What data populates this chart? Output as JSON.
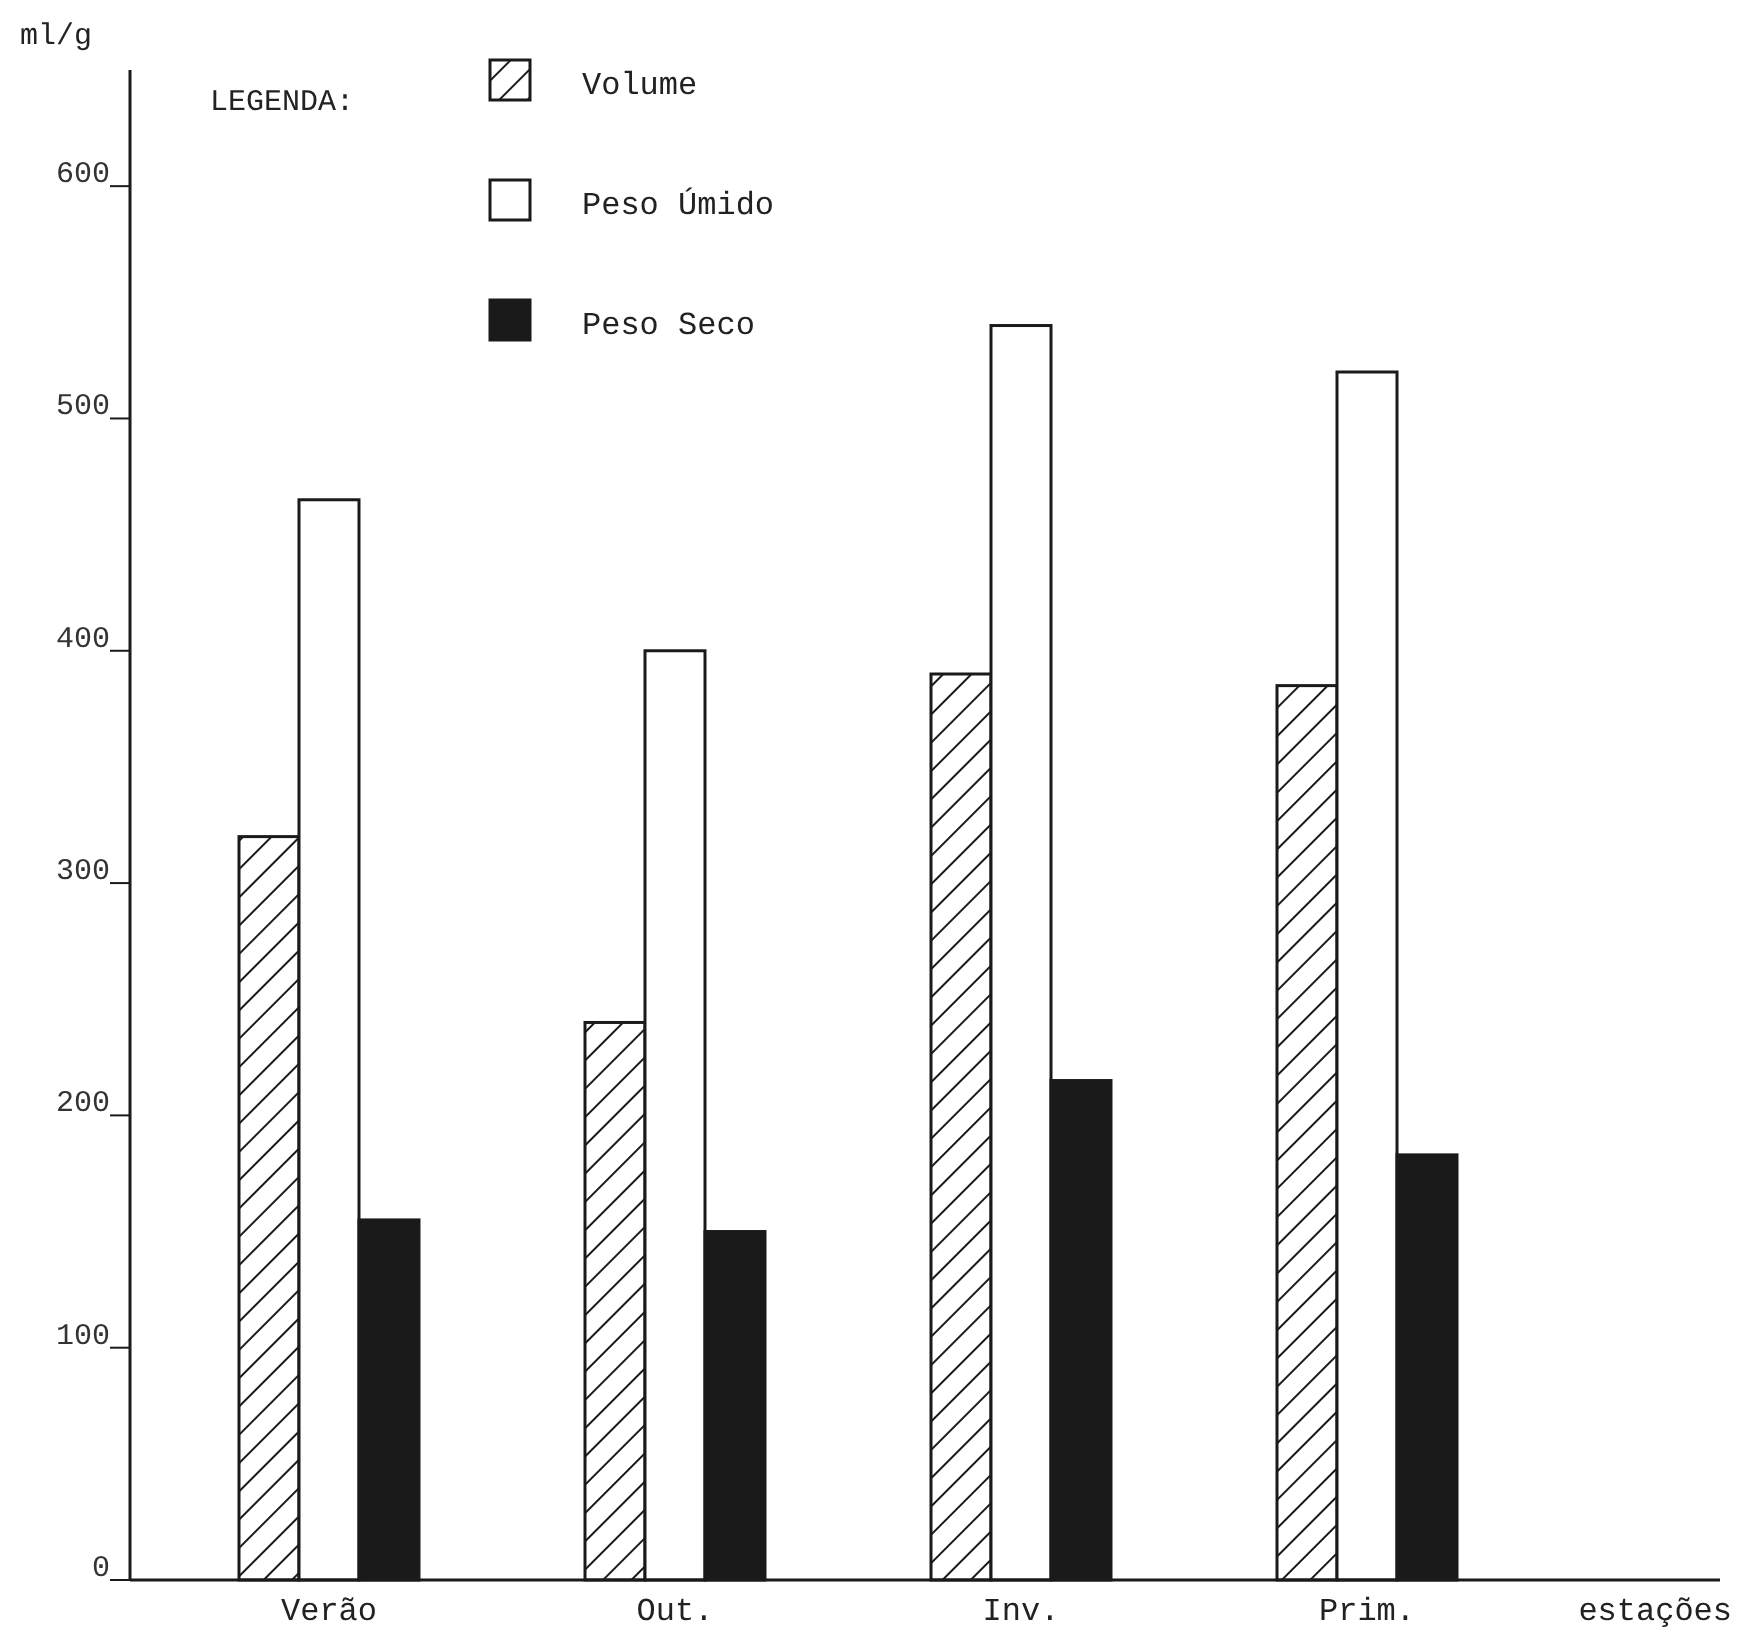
{
  "chart_data": {
    "type": "bar",
    "ylabel": "ml/g",
    "xlabel": "estações",
    "legend_title": "LEGENDA:",
    "legend": "top",
    "grid": false,
    "categories": [
      "Verão",
      "Out.",
      "Inv.",
      "Prim."
    ],
    "ylim": [
      0,
      650
    ],
    "yticks": [
      0,
      100,
      200,
      300,
      400,
      500,
      600
    ],
    "series": [
      {
        "name": "Volume",
        "color": "#1a1a1a",
        "values": [
          320,
          240,
          390,
          385
        ]
      },
      {
        "name": "Peso Úmido",
        "color": "#ffffff",
        "values": [
          465,
          400,
          540,
          520
        ]
      },
      {
        "name": "Peso Seco",
        "color": "#1a1a1a",
        "values": [
          155,
          150,
          215,
          183
        ]
      }
    ]
  }
}
